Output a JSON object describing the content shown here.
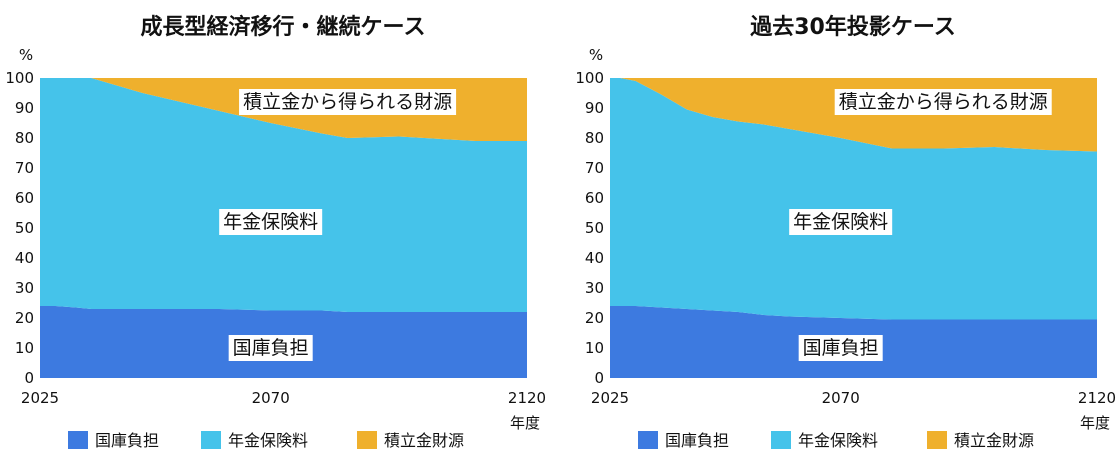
{
  "chart_data": [
    {
      "type": "area",
      "stacked": true,
      "title": "成長型経済移行・継続ケース",
      "ylabel": "%",
      "xlabel": "年度",
      "xlim": [
        2025,
        2120
      ],
      "ylim": [
        0,
        100
      ],
      "y_ticks": [
        "0",
        "10",
        "20",
        "30",
        "40",
        "50",
        "60",
        "70",
        "80",
        "90",
        "100"
      ],
      "x_ticks": [
        "2025",
        "2070",
        "2120"
      ],
      "x": [
        2025,
        2028,
        2032,
        2035,
        2039,
        2045,
        2050,
        2055,
        2060,
        2070,
        2080,
        2085,
        2095,
        2100,
        2110,
        2120
      ],
      "series": [
        {
          "name": "国庫負担",
          "color": "#3d7ae0",
          "values": [
            24.0,
            24.0,
            23.5,
            23.0,
            23.0,
            23.0,
            23.0,
            23.0,
            23.0,
            22.5,
            22.5,
            22.0,
            22.0,
            22.0,
            22.0,
            22.0
          ],
          "label": "国庫負担",
          "label_pos": [
            2070,
            10
          ]
        },
        {
          "name": "年金保険料",
          "color": "#45c3ea",
          "values": [
            76.0,
            76.0,
            76.5,
            77.0,
            75.0,
            72.0,
            70.0,
            68.0,
            66.0,
            62.5,
            59.0,
            58.0,
            58.5,
            58.0,
            57.0,
            57.0
          ],
          "label": "年金保険料",
          "label_pos": [
            2070,
            52
          ]
        },
        {
          "name": "積立金財源",
          "color": "#efb02d",
          "values": [
            0.0,
            0.0,
            0.0,
            0.0,
            2.0,
            5.0,
            7.0,
            9.0,
            11.0,
            15.0,
            18.5,
            20.0,
            19.5,
            20.0,
            21.0,
            21.0
          ],
          "label": "積立金から得られる財源",
          "label_pos": [
            2085,
            92
          ]
        }
      ],
      "legend": {
        "position": "bottom",
        "entries": [
          "国庫負担",
          "年金保険料",
          "積立金財源"
        ]
      }
    },
    {
      "type": "area",
      "stacked": true,
      "title": "過去30年投影ケース",
      "ylabel": "%",
      "xlabel": "年度",
      "xlim": [
        2025,
        2120
      ],
      "ylim": [
        0,
        100
      ],
      "y_ticks": [
        "0",
        "10",
        "20",
        "30",
        "40",
        "50",
        "60",
        "70",
        "80",
        "90",
        "100"
      ],
      "x_ticks": [
        "2025",
        "2070",
        "2120"
      ],
      "x": [
        2025,
        2027,
        2030,
        2035,
        2040,
        2045,
        2050,
        2055,
        2060,
        2070,
        2080,
        2090,
        2100,
        2110,
        2120
      ],
      "series": [
        {
          "name": "国庫負担",
          "color": "#3d7ae0",
          "values": [
            24.0,
            24.0,
            24.0,
            23.5,
            23.0,
            22.5,
            22.0,
            21.0,
            20.5,
            20.0,
            19.5,
            19.5,
            19.5,
            19.5,
            19.5
          ],
          "label": "国庫負担",
          "label_pos": [
            2070,
            10
          ]
        },
        {
          "name": "年金保険料",
          "color": "#45c3ea",
          "values": [
            76.0,
            76.0,
            75.0,
            71.0,
            66.5,
            64.5,
            63.5,
            63.5,
            62.5,
            60.0,
            57.0,
            57.0,
            57.5,
            56.5,
            56.0
          ],
          "label": "年金保険料",
          "label_pos": [
            2070,
            52
          ]
        },
        {
          "name": "積立金財源",
          "color": "#efb02d",
          "values": [
            0.0,
            0.0,
            1.0,
            5.5,
            10.5,
            13.0,
            14.5,
            15.5,
            17.0,
            20.0,
            23.5,
            23.5,
            23.0,
            24.0,
            24.5
          ],
          "label": "積立金から得られる財源",
          "label_pos": [
            2090,
            92
          ]
        }
      ],
      "legend": {
        "position": "bottom",
        "entries": [
          "国庫負担",
          "年金保険料",
          "積立金財源"
        ]
      }
    }
  ]
}
